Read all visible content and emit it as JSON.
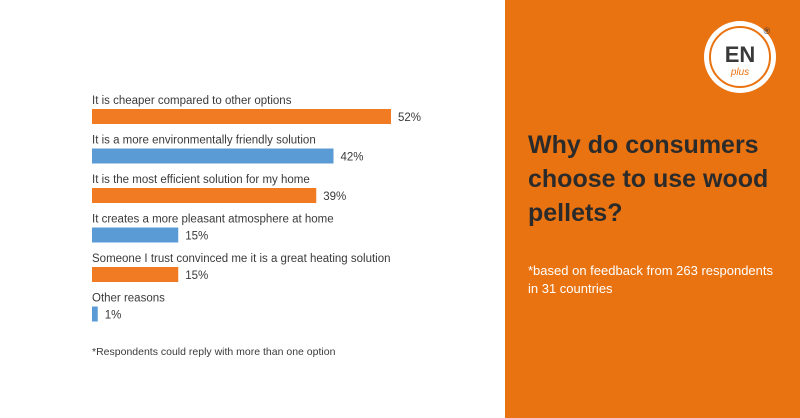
{
  "chart_data": {
    "type": "bar",
    "orientation": "horizontal",
    "categories": [
      "It is cheaper compared to other options",
      "It is a more environmentally friendly solution",
      "It is the most efficient solution for my home",
      "It creates a more pleasant atmosphere at home",
      "Someone I trust convinced me it is a great heating solution",
      "Other reasons"
    ],
    "values": [
      52,
      42,
      39,
      15,
      15,
      1
    ],
    "value_labels": [
      "52%",
      "42%",
      "39%",
      "15%",
      "15%",
      "1%"
    ],
    "bar_colors": [
      "#f07b22",
      "#5b9bd5",
      "#f07b22",
      "#5b9bd5",
      "#f07b22",
      "#5b9bd5"
    ],
    "xlim": [
      0,
      52
    ],
    "grid": false,
    "title": "",
    "xlabel": "",
    "ylabel": ""
  },
  "footnote": "*Respondents could reply with more than one option",
  "headline": "Why do consumers choose to use wood pellets?",
  "note": "*based on feedback from 263 respondents in 31 countries",
  "logo": {
    "line1": "EN",
    "line2": "plus",
    "registered": "®"
  },
  "colors": {
    "accent_orange": "#ea7311",
    "bar_orange": "#f07b22",
    "bar_blue": "#5b9bd5",
    "headline": "#2b2b2b"
  }
}
